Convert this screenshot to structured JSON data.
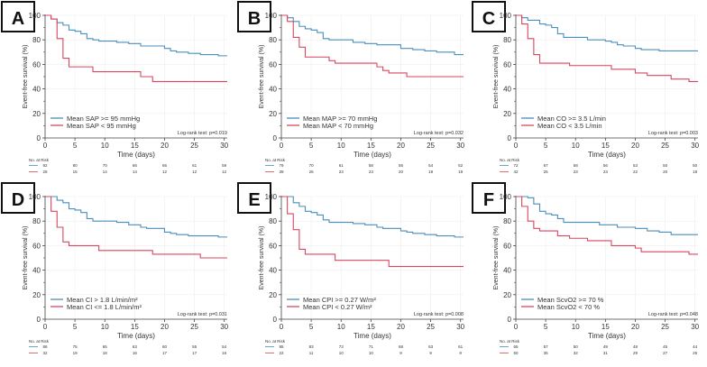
{
  "colors": {
    "high": "#4a8fbd",
    "low": "#d9475f",
    "axis": "#444444",
    "grid": "#eeeeee"
  },
  "chart_data": [
    {
      "type": "line",
      "step": true,
      "panel_label": "A",
      "ylabel": "Event-free survival (%)",
      "xlabel": "Time (days)",
      "xlim": [
        0,
        30.5
      ],
      "ylim": [
        0,
        100
      ],
      "xticks": [
        0,
        5,
        10,
        15,
        20,
        25,
        30
      ],
      "yticks": [
        0,
        20,
        40,
        60,
        80,
        100
      ],
      "grid": true,
      "legend_position": "bottom-left",
      "logrank": "Log-rank test: p=0.019",
      "risk_title": "No. at Risk",
      "series": [
        {
          "name": "Mean SAP >= 95 mmHg",
          "color": "#4a8fbd",
          "x": [
            0,
            1,
            2,
            3,
            4,
            5,
            6,
            7,
            8,
            9,
            12,
            14,
            16,
            20,
            21,
            22,
            24,
            26,
            29
          ],
          "y": [
            100,
            97,
            94,
            92,
            88,
            87,
            85,
            81,
            80,
            79,
            78,
            77,
            75,
            73,
            71,
            70,
            69,
            68,
            67
          ],
          "at_risk": [
            92,
            80,
            70,
            66,
            66,
            61,
            59
          ]
        },
        {
          "name": "Mean SAP < 95 mmHg",
          "color": "#d9475f",
          "x": [
            0,
            1,
            2,
            3,
            4,
            8,
            16,
            18
          ],
          "y": [
            100,
            97,
            81,
            65,
            58,
            54,
            50,
            46
          ],
          "at_risk": [
            26,
            15,
            14,
            14,
            12,
            12,
            12
          ]
        }
      ]
    },
    {
      "type": "line",
      "step": true,
      "panel_label": "B",
      "ylabel": "Event-free survival (%)",
      "xlabel": "Time (days)",
      "xlim": [
        0,
        30.5
      ],
      "ylim": [
        0,
        100
      ],
      "xticks": [
        0,
        5,
        10,
        15,
        20,
        25,
        30
      ],
      "yticks": [
        0,
        20,
        40,
        60,
        80,
        100
      ],
      "grid": true,
      "legend_position": "bottom-left",
      "logrank": "Log-rank test: p=0.032",
      "risk_title": "No. at Risk",
      "series": [
        {
          "name": "Mean MAP >= 70 mmHg",
          "color": "#4a8fbd",
          "x": [
            0,
            1,
            2,
            3,
            4,
            5,
            6,
            7,
            8,
            12,
            14,
            16,
            20,
            22,
            24,
            26,
            29
          ],
          "y": [
            100,
            98,
            95,
            91,
            89,
            88,
            86,
            81,
            80,
            78,
            77,
            76,
            73,
            72,
            71,
            70,
            68
          ],
          "at_risk": [
            79,
            70,
            61,
            58,
            56,
            54,
            52
          ]
        },
        {
          "name": "Mean MAP < 70 mmHg",
          "color": "#d9475f",
          "x": [
            0,
            1,
            2,
            3,
            4,
            8,
            9,
            16,
            17,
            18,
            21
          ],
          "y": [
            100,
            95,
            82,
            74,
            66,
            63,
            61,
            58,
            55,
            53,
            50
          ],
          "at_risk": [
            39,
            26,
            23,
            23,
            20,
            19,
            19
          ]
        }
      ]
    },
    {
      "type": "line",
      "step": true,
      "panel_label": "C",
      "ylabel": "Event-free survival (%)",
      "xlabel": "Time (days)",
      "xlim": [
        0,
        30.5
      ],
      "ylim": [
        0,
        100
      ],
      "xticks": [
        0,
        5,
        10,
        15,
        20,
        25,
        30
      ],
      "yticks": [
        0,
        20,
        40,
        60,
        80,
        100
      ],
      "grid": true,
      "legend_position": "bottom-left",
      "logrank": "Log-rank test: p=0.003",
      "risk_title": "No. at Risk",
      "series": [
        {
          "name": "Mean CO >= 3.5 L/min",
          "color": "#4a8fbd",
          "x": [
            0,
            1,
            2,
            4,
            5,
            6,
            7,
            8,
            12,
            15,
            16,
            17,
            18,
            20,
            21,
            24
          ],
          "y": [
            100,
            98,
            96,
            93,
            92,
            90,
            85,
            82,
            80,
            79,
            78,
            76,
            75,
            73,
            72,
            71
          ],
          "at_risk": [
            72,
            67,
            58,
            56,
            53,
            50,
            50
          ]
        },
        {
          "name": "Mean CO < 3.5 L/min",
          "color": "#d9475f",
          "x": [
            0,
            1,
            2,
            3,
            4,
            9,
            16,
            20,
            22,
            26,
            29
          ],
          "y": [
            100,
            93,
            81,
            68,
            61,
            59,
            56,
            53,
            51,
            48,
            46
          ],
          "at_risk": [
            42,
            25,
            23,
            23,
            22,
            20,
            18
          ]
        }
      ]
    },
    {
      "type": "line",
      "step": true,
      "panel_label": "D",
      "ylabel": "Event-free survival (%)",
      "xlabel": "Time (days)",
      "xlim": [
        0,
        30.5
      ],
      "ylim": [
        0,
        100
      ],
      "xticks": [
        0,
        5,
        10,
        15,
        20,
        25,
        30
      ],
      "yticks": [
        0,
        20,
        40,
        60,
        80,
        100
      ],
      "grid": true,
      "legend_position": "bottom-left",
      "logrank": "Log-rank test: p=0.031",
      "risk_title": "No. at Risk",
      "series": [
        {
          "name": "Mean CI > 1.8 L/min/m²",
          "color": "#4a8fbd",
          "x": [
            0,
            2,
            3,
            4,
            5,
            6,
            7,
            8,
            12,
            14,
            16,
            17,
            20,
            21,
            22,
            24,
            29
          ],
          "y": [
            100,
            97,
            95,
            90,
            89,
            87,
            82,
            80,
            79,
            77,
            75,
            74,
            71,
            70,
            69,
            68,
            67
          ],
          "at_risk": [
            86,
            75,
            65,
            63,
            60,
            55,
            54
          ]
        },
        {
          "name": "Mean CI <= 1.8 L/min/m²",
          "color": "#d9475f",
          "x": [
            0,
            1,
            2,
            3,
            4,
            9,
            18,
            26
          ],
          "y": [
            100,
            88,
            75,
            63,
            60,
            56,
            53,
            50
          ],
          "at_risk": [
            32,
            19,
            18,
            16,
            17,
            17,
            16
          ]
        }
      ]
    },
    {
      "type": "line",
      "step": true,
      "panel_label": "E",
      "ylabel": "Event-free survival (%)",
      "xlabel": "Time (days)",
      "xlim": [
        0,
        30.5
      ],
      "ylim": [
        0,
        100
      ],
      "xticks": [
        0,
        5,
        10,
        15,
        20,
        25,
        30
      ],
      "yticks": [
        0,
        20,
        40,
        60,
        80,
        100
      ],
      "grid": true,
      "legend_position": "bottom-left",
      "logrank": "Log-rank test: p=0.008",
      "risk_title": "No. at Risk",
      "series": [
        {
          "name": "Mean CPI >= 0.27 W/m²",
          "color": "#4a8fbd",
          "x": [
            0,
            2,
            3,
            4,
            5,
            6,
            7,
            8,
            12,
            14,
            16,
            17,
            20,
            21,
            22,
            24,
            26,
            29
          ],
          "y": [
            100,
            95,
            92,
            88,
            87,
            85,
            81,
            79,
            78,
            77,
            75,
            74,
            72,
            71,
            70,
            69,
            68,
            67
          ],
          "at_risk": [
            95,
            83,
            73,
            71,
            68,
            63,
            61
          ]
        },
        {
          "name": "Mean CPI < 0.27 W/m²",
          "color": "#d9475f",
          "x": [
            0,
            1,
            2,
            3,
            4,
            9,
            18
          ],
          "y": [
            100,
            86,
            73,
            57,
            53,
            48,
            43
          ],
          "at_risk": [
            22,
            11,
            10,
            10,
            9,
            9,
            9
          ]
        }
      ]
    },
    {
      "type": "line",
      "step": true,
      "panel_label": "F",
      "ylabel": "Event-free survival (%)",
      "xlabel": "Time (days)",
      "xlim": [
        0,
        30.5
      ],
      "ylim": [
        0,
        100
      ],
      "xticks": [
        0,
        5,
        10,
        15,
        20,
        25,
        30
      ],
      "yticks": [
        0,
        20,
        40,
        60,
        80,
        100
      ],
      "grid": true,
      "legend_position": "bottom-left",
      "logrank": "Log-rank test: p=0.048",
      "risk_title": "No. at Risk",
      "series": [
        {
          "name": "Mean ScvO2 >= 70 %",
          "color": "#4a8fbd",
          "x": [
            0,
            2,
            3,
            4,
            5,
            6,
            7,
            8,
            14,
            17,
            20,
            22,
            24,
            26
          ],
          "y": [
            100,
            99,
            94,
            88,
            86,
            85,
            82,
            79,
            77,
            75,
            74,
            72,
            71,
            69
          ],
          "at_risk": [
            65,
            57,
            50,
            49,
            48,
            45,
            44
          ]
        },
        {
          "name": "Mean ScvO2 < 70 %",
          "color": "#d9475f",
          "x": [
            0,
            1,
            2,
            3,
            4,
            7,
            9,
            12,
            16,
            20,
            21,
            29
          ],
          "y": [
            100,
            92,
            80,
            74,
            72,
            68,
            66,
            64,
            60,
            58,
            55,
            53
          ],
          "at_risk": [
            50,
            35,
            32,
            31,
            29,
            27,
            26
          ]
        }
      ]
    }
  ]
}
